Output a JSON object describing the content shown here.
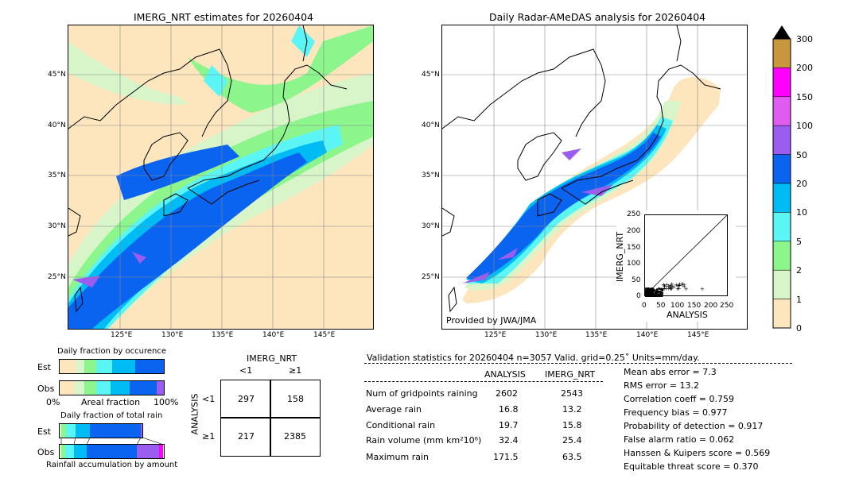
{
  "left_map": {
    "title": "IMERG_NRT estimates for 20260404",
    "lat_labels": [
      "45°N",
      "40°N",
      "35°N",
      "30°N",
      "25°N"
    ],
    "lon_labels": [
      "125°E",
      "130°E",
      "135°E",
      "140°E",
      "145°E"
    ]
  },
  "right_map": {
    "title": "Daily Radar-AMeDAS analysis for 20260404",
    "lat_labels": [
      "45°N",
      "40°N",
      "35°N",
      "30°N",
      "25°N"
    ],
    "lon_labels": [
      "125°E",
      "130°E",
      "135°E",
      "140°E",
      "145°E"
    ],
    "credit": "Provided by JWA/JMA"
  },
  "colorbar": {
    "levels": [
      "300",
      "200",
      "150",
      "100",
      "50",
      "20",
      "10",
      "5",
      "2",
      "1",
      "0"
    ],
    "colors": [
      "#c8963c",
      "#ff00ff",
      "#e05cf0",
      "#9b5cf0",
      "#0a64f0",
      "#00bcf5",
      "#5cf5f5",
      "#8cf58c",
      "#d7f5c8",
      "#fde6be"
    ]
  },
  "scatter": {
    "xlabel": "ANALYSIS",
    "ylabel": "IMERG_NRT",
    "ticks": [
      "0",
      "50",
      "100",
      "150",
      "200",
      "250"
    ]
  },
  "occurrence": {
    "title": "Daily fraction by occurence",
    "row_est": "Est",
    "row_obs": "Obs",
    "axis_left": "0%",
    "axis_mid": "Areal fraction",
    "axis_right": "100%"
  },
  "amount": {
    "title": "Daily fraction of total rain",
    "row_est": "Est",
    "row_obs": "Obs",
    "footer": "Rainfall accumulation by amount"
  },
  "contingency": {
    "col_title": "IMERG_NRT",
    "col_lt": "<1",
    "col_ge": "≥1",
    "row_title": "ANALYSIS",
    "row_lt": "<1",
    "row_ge": "≥1",
    "a": "297",
    "b": "158",
    "c": "217",
    "d": "2385"
  },
  "stats": {
    "header": "Validation statistics for 20260404  n=3057 Valid. grid=0.25˚ Units=mm/day.",
    "col_analysis": "ANALYSIS",
    "col_imerg": "IMERG_NRT",
    "rows": [
      {
        "label": "Num of gridpoints raining",
        "analysis": "2602",
        "imerg": "2543"
      },
      {
        "label": "Average rain",
        "analysis": "16.8",
        "imerg": "13.2"
      },
      {
        "label": "Conditional rain",
        "analysis": "19.7",
        "imerg": "15.8"
      },
      {
        "label": "Rain volume (mm km²10⁶)",
        "analysis": "32.4",
        "imerg": "25.4"
      },
      {
        "label": "Maximum rain",
        "analysis": "171.5",
        "imerg": "63.5"
      }
    ],
    "scores": [
      "Mean abs error =    7.3",
      "RMS error =   13.2",
      "Correlation coeff =  0.759",
      "Frequency bias =  0.977",
      "Probability of detection =  0.917",
      "False alarm ratio =  0.062",
      "Hanssen & Kuipers score =  0.569",
      "Equitable threat score =  0.370"
    ]
  }
}
